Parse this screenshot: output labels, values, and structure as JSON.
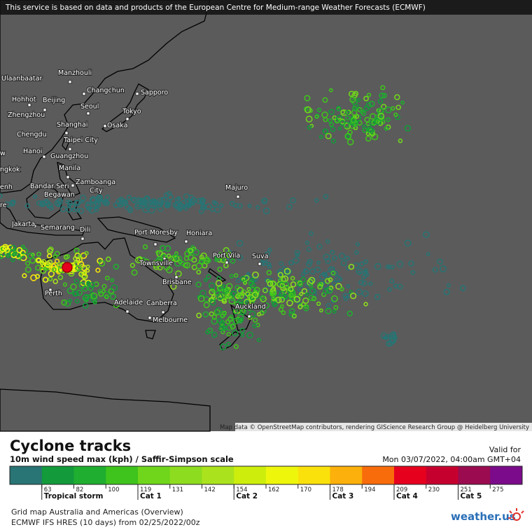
{
  "header": {
    "notice": "This service is based on data and products of the European Centre for Medium-range Weather Forecasts (ECMWF)"
  },
  "map": {
    "cities": [
      "Ulaanbaatar",
      "Manzhouli",
      "Changchun",
      "Sapporo",
      "Hohhot",
      "Beijing",
      "Seoul",
      "Tokyo",
      "Zhengzhou",
      "Shanghai",
      "Osaka",
      "Chengdu",
      "Taipei City",
      "Hanoi",
      "Guangzhou",
      "Manila",
      [
        "Zamboanga",
        "City"
      ],
      [
        "Bandar Seri",
        "Begawan"
      ],
      "Majuro",
      "Jakarta",
      "Semarang",
      "Dili",
      "Port Moresby",
      "Honiara",
      "Port Vila",
      "Suva",
      "Townsville",
      "Brisbane",
      "Perth",
      "Adelaide",
      "Canberra",
      "Auckland",
      "Melbourne",
      "ngkok",
      "enh",
      "re",
      "w"
    ],
    "attribution": "Map data © OpenStreetMap contributors, rendering GIScience Research Group @ Heidelberg University"
  },
  "legend": {
    "title": "Cyclone tracks",
    "subtitle": "10m wind speed max (kph) / Saffir-Simpson scale",
    "valid_label": "Valid for",
    "valid_time": "Mon 03/07/2022, 04:00am GMT+04",
    "colors": [
      "#297474",
      "#139a3b",
      "#1fae2f",
      "#3fc31d",
      "#6fd61b",
      "#8edc1f",
      "#aae31d",
      "#cdee0d",
      "#eef70b",
      "#fbe10b",
      "#fbb00b",
      "#f86c0b",
      "#e6001e",
      "#c6002e",
      "#9a0b50",
      "#7b0b8a"
    ],
    "ticks": [
      63,
      82,
      100,
      119,
      131,
      142,
      154,
      162,
      170,
      178,
      194,
      209,
      230,
      251,
      275
    ],
    "categories": [
      {
        "at": 63,
        "label": "Tropical storm"
      },
      {
        "at": 119,
        "label": "Cat 1"
      },
      {
        "at": 154,
        "label": "Cat 2"
      },
      {
        "at": 178,
        "label": "Cat 3"
      },
      {
        "at": 209,
        "label": "Cat 4"
      },
      {
        "at": 251,
        "label": "Cat 5"
      }
    ]
  },
  "footer": {
    "line1": "Grid map Australia and Americas (Overview)",
    "line2": "ECMWF IFS HRES (10 days) from 02/25/2022/00z",
    "logo": "weather.us"
  }
}
